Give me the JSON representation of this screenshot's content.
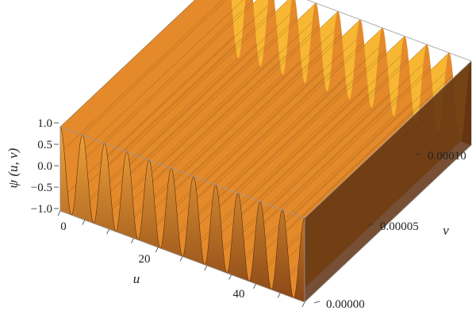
{
  "chart_data": {
    "type": "surface",
    "z_function": "sin-like oscillation in u, constant along v",
    "z_label": "ψ (u, v)",
    "x_label": "u",
    "y_label": "v",
    "z_ticks": [
      "1.0",
      "0.5",
      "0.0",
      "−0.5",
      "−1.0"
    ],
    "x_ticks": [
      "0",
      "20",
      "40"
    ],
    "y_ticks": [
      "0.00000",
      "0.00005",
      "0.00010"
    ],
    "xlim": [
      0,
      50
    ],
    "ylim": [
      0,
      0.0001
    ],
    "zlim": [
      -1,
      1
    ],
    "oscillation_count": 11,
    "colors": {
      "light": "#f7b733",
      "mid": "#e48a2a",
      "dark": "#8b4a17",
      "shadow": "#5e3010",
      "mesh": "#4a2a10"
    }
  }
}
